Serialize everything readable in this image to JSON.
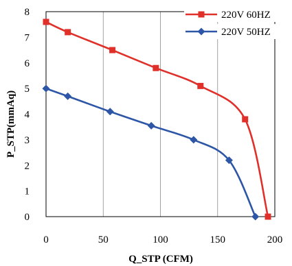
{
  "chart_data": {
    "type": "line",
    "title": "",
    "xlabel": "Q_STP (CFM)",
    "ylabel": "P_STP(mmAq)",
    "xlim": [
      0,
      200
    ],
    "ylim": [
      0,
      8
    ],
    "x_ticks": [
      "0",
      "50",
      "100",
      "150",
      "200"
    ],
    "y_ticks": [
      "0",
      "1",
      "2",
      "3",
      "4",
      "5",
      "6",
      "7",
      "8"
    ],
    "grid": "vertical",
    "legend_position": "top-right",
    "series": [
      {
        "name": "220V 60HZ",
        "color": "#E0302A",
        "marker": "square",
        "x": [
          0,
          19,
          58,
          96,
          135,
          174,
          194
        ],
        "y": [
          7.6,
          7.2,
          6.5,
          5.8,
          5.1,
          3.8,
          0.0
        ]
      },
      {
        "name": "220V 50HZ",
        "color": "#2E56A6",
        "marker": "diamond",
        "x": [
          0,
          19,
          56,
          92,
          129,
          160,
          183
        ],
        "y": [
          5.0,
          4.7,
          4.1,
          3.55,
          3.0,
          2.2,
          0.0
        ]
      }
    ]
  }
}
